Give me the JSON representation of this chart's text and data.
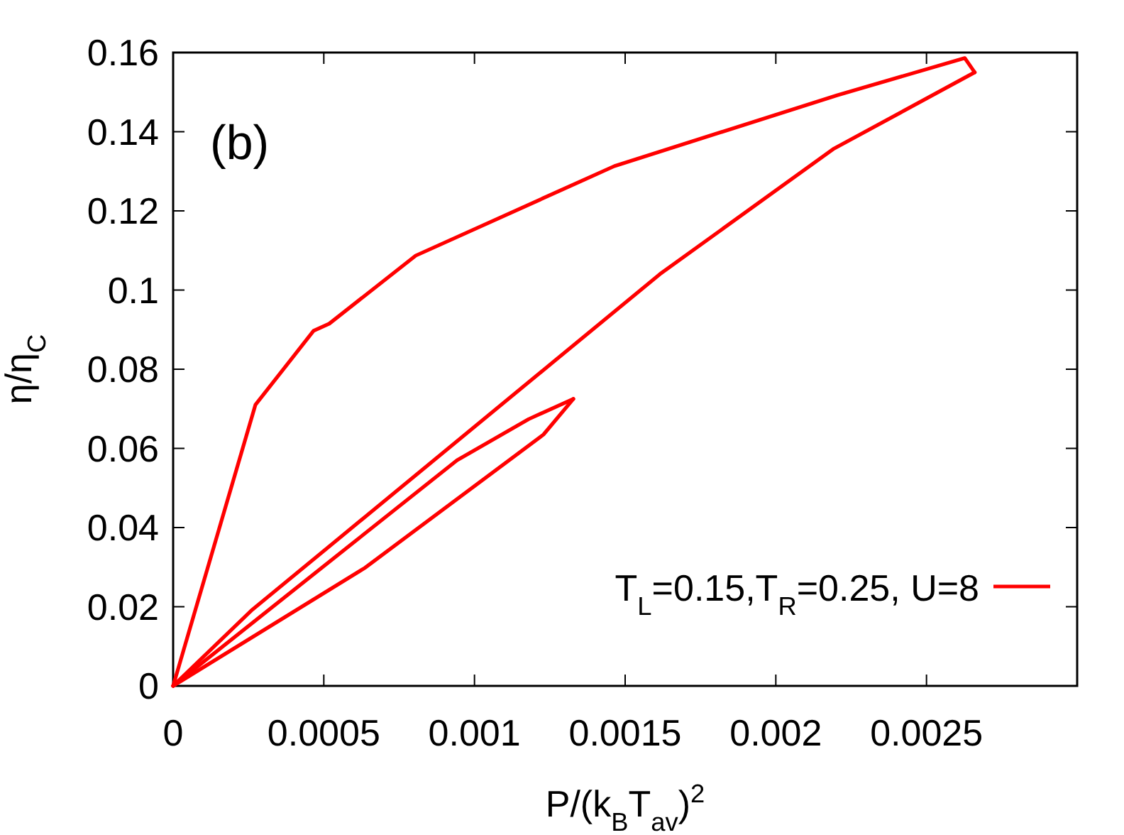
{
  "chart_data": {
    "type": "line",
    "xlabel": "P/(k$_{B}$T$_{av}$)$^{2}$",
    "ylabel": "η/η$_{C}$",
    "annotations": [
      "(b)"
    ],
    "xlim": [
      0,
      0.003
    ],
    "ylim": [
      0,
      0.16
    ],
    "xticks": [
      0,
      0.0005,
      0.001,
      0.0015,
      0.002,
      0.0025
    ],
    "yticks": [
      0,
      0.02,
      0.04,
      0.06,
      0.08,
      0.1,
      0.12,
      0.14,
      0.16
    ],
    "grid": false,
    "legend": "bottom right",
    "marker": "none",
    "line_style": "solid",
    "series": [
      {
        "name": "T$_{L}$=0.15,T$_{R}$=0.25, U=8",
        "color": "#ff0000",
        "x": [
          0,
          0.000273,
          0.000466,
          0.000518,
          0.000805,
          0.001464,
          0.002203,
          0.002627,
          0.00266
        ],
        "values": [
          0,
          0.071,
          0.0897,
          0.0915,
          0.1087,
          0.1313,
          0.1492,
          0.1586,
          0.155
        ]
      },
      {
        "color": "#ff0000",
        "x": [
          0,
          0.000259,
          0.001615,
          0.00219,
          0.00266
        ],
        "values": [
          0,
          0.019,
          0.104,
          0.1356,
          0.155
        ]
      },
      {
        "color": "#ff0000",
        "x": [
          0,
          0.000636,
          0.001229,
          0.001328
        ],
        "values": [
          0,
          0.0298,
          0.0635,
          0.0725
        ]
      },
      {
        "color": "#ff0000",
        "x": [
          0,
          0.000942,
          0.00118,
          0.001328
        ],
        "values": [
          0,
          0.057,
          0.0674,
          0.0725
        ]
      }
    ]
  }
}
